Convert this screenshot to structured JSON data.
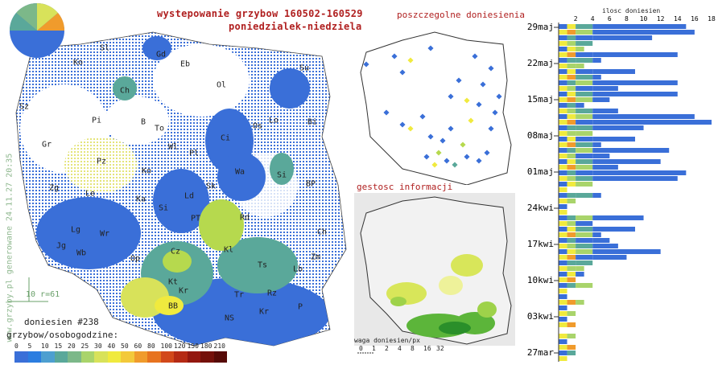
{
  "title": "wystepowanie grzybow 160502-160529",
  "subtitle": "poniedzialek-niedziela",
  "watermark": "www.grzyby.pl generowane 24.11.27 20:35",
  "scale_note": "10 r=61",
  "reports": "doniesien #238",
  "legend_title": "grzybow/osobogodzine:",
  "legend_ticks": [
    "0",
    "5",
    "10",
    "15",
    "20",
    "25",
    "30",
    "40",
    "50",
    "60",
    "80",
    "100",
    "120",
    "150",
    "180",
    "210"
  ],
  "legend_colors": [
    "#3a6fd8",
    "#2b7de0",
    "#4d9fd0",
    "#5aa89a",
    "#7cb889",
    "#a9d46b",
    "#d8e25a",
    "#f0ea3e",
    "#f3c93a",
    "#f09b2c",
    "#e7731f",
    "#d2481a",
    "#b52a14",
    "#93170f",
    "#74100a",
    "#560a06"
  ],
  "panel_points_title": "poszczegolne doniesienia",
  "panel_density_title": "gestosc informacji",
  "density_legend_title": "waga doniesien/px",
  "density_ticks": [
    "0",
    "1",
    "2",
    "4",
    "8",
    "16",
    "32"
  ],
  "density_colors": [
    "#ffffff",
    "#f7f7c8",
    "#eef29a",
    "#d6e65a",
    "#9ed24a",
    "#5cb53a",
    "#2a8f2a"
  ],
  "region_labels_main": [
    "Sl",
    "Gd",
    "Eb",
    "Su",
    "Ko",
    "Ol",
    "Ch",
    "Sz",
    "B",
    "Pi",
    "To",
    "Os",
    "Lo",
    "Bi",
    "Gr",
    "Wl",
    "Ci",
    "Pz",
    "Pl",
    "Ko",
    "Si",
    "Zg",
    "Wa",
    "Le",
    "Sk",
    "Ka",
    "BP",
    "Ld",
    "Lg",
    "Wr",
    "Jg",
    "Wb",
    "Rd",
    "PT",
    "Si",
    "Ch",
    "Kl",
    "Cz",
    "Zm",
    "Lb",
    "Op",
    "Kt",
    "Kr",
    "Tr",
    "Rz",
    "Ts",
    "BB",
    "NS",
    "Kr",
    "P"
  ],
  "chart_data": {
    "type": "bar",
    "title": "ilosc doniesien",
    "x_ticks": [
      2,
      4,
      6,
      8,
      10,
      12,
      14,
      16,
      18
    ],
    "xlim": [
      0,
      18
    ],
    "row_labels": [
      "29maj",
      "22maj",
      "15maj",
      "08maj",
      "01maj",
      "24kwi",
      "17kwi",
      "10kwi",
      "03kwi",
      "27mar"
    ],
    "totals": [
      15,
      16,
      11,
      4,
      3,
      14,
      5,
      3,
      9,
      5,
      14,
      7,
      14,
      6,
      3,
      7,
      16,
      18,
      10,
      4,
      9,
      5,
      13,
      6,
      12,
      7,
      15,
      14,
      4,
      1,
      5,
      2,
      1,
      1,
      10,
      4,
      9,
      5,
      6,
      7,
      12,
      8,
      4,
      3,
      3,
      2,
      4,
      1,
      1,
      3,
      1,
      2,
      1,
      2,
      0,
      2,
      1,
      2,
      2,
      1
    ]
  }
}
